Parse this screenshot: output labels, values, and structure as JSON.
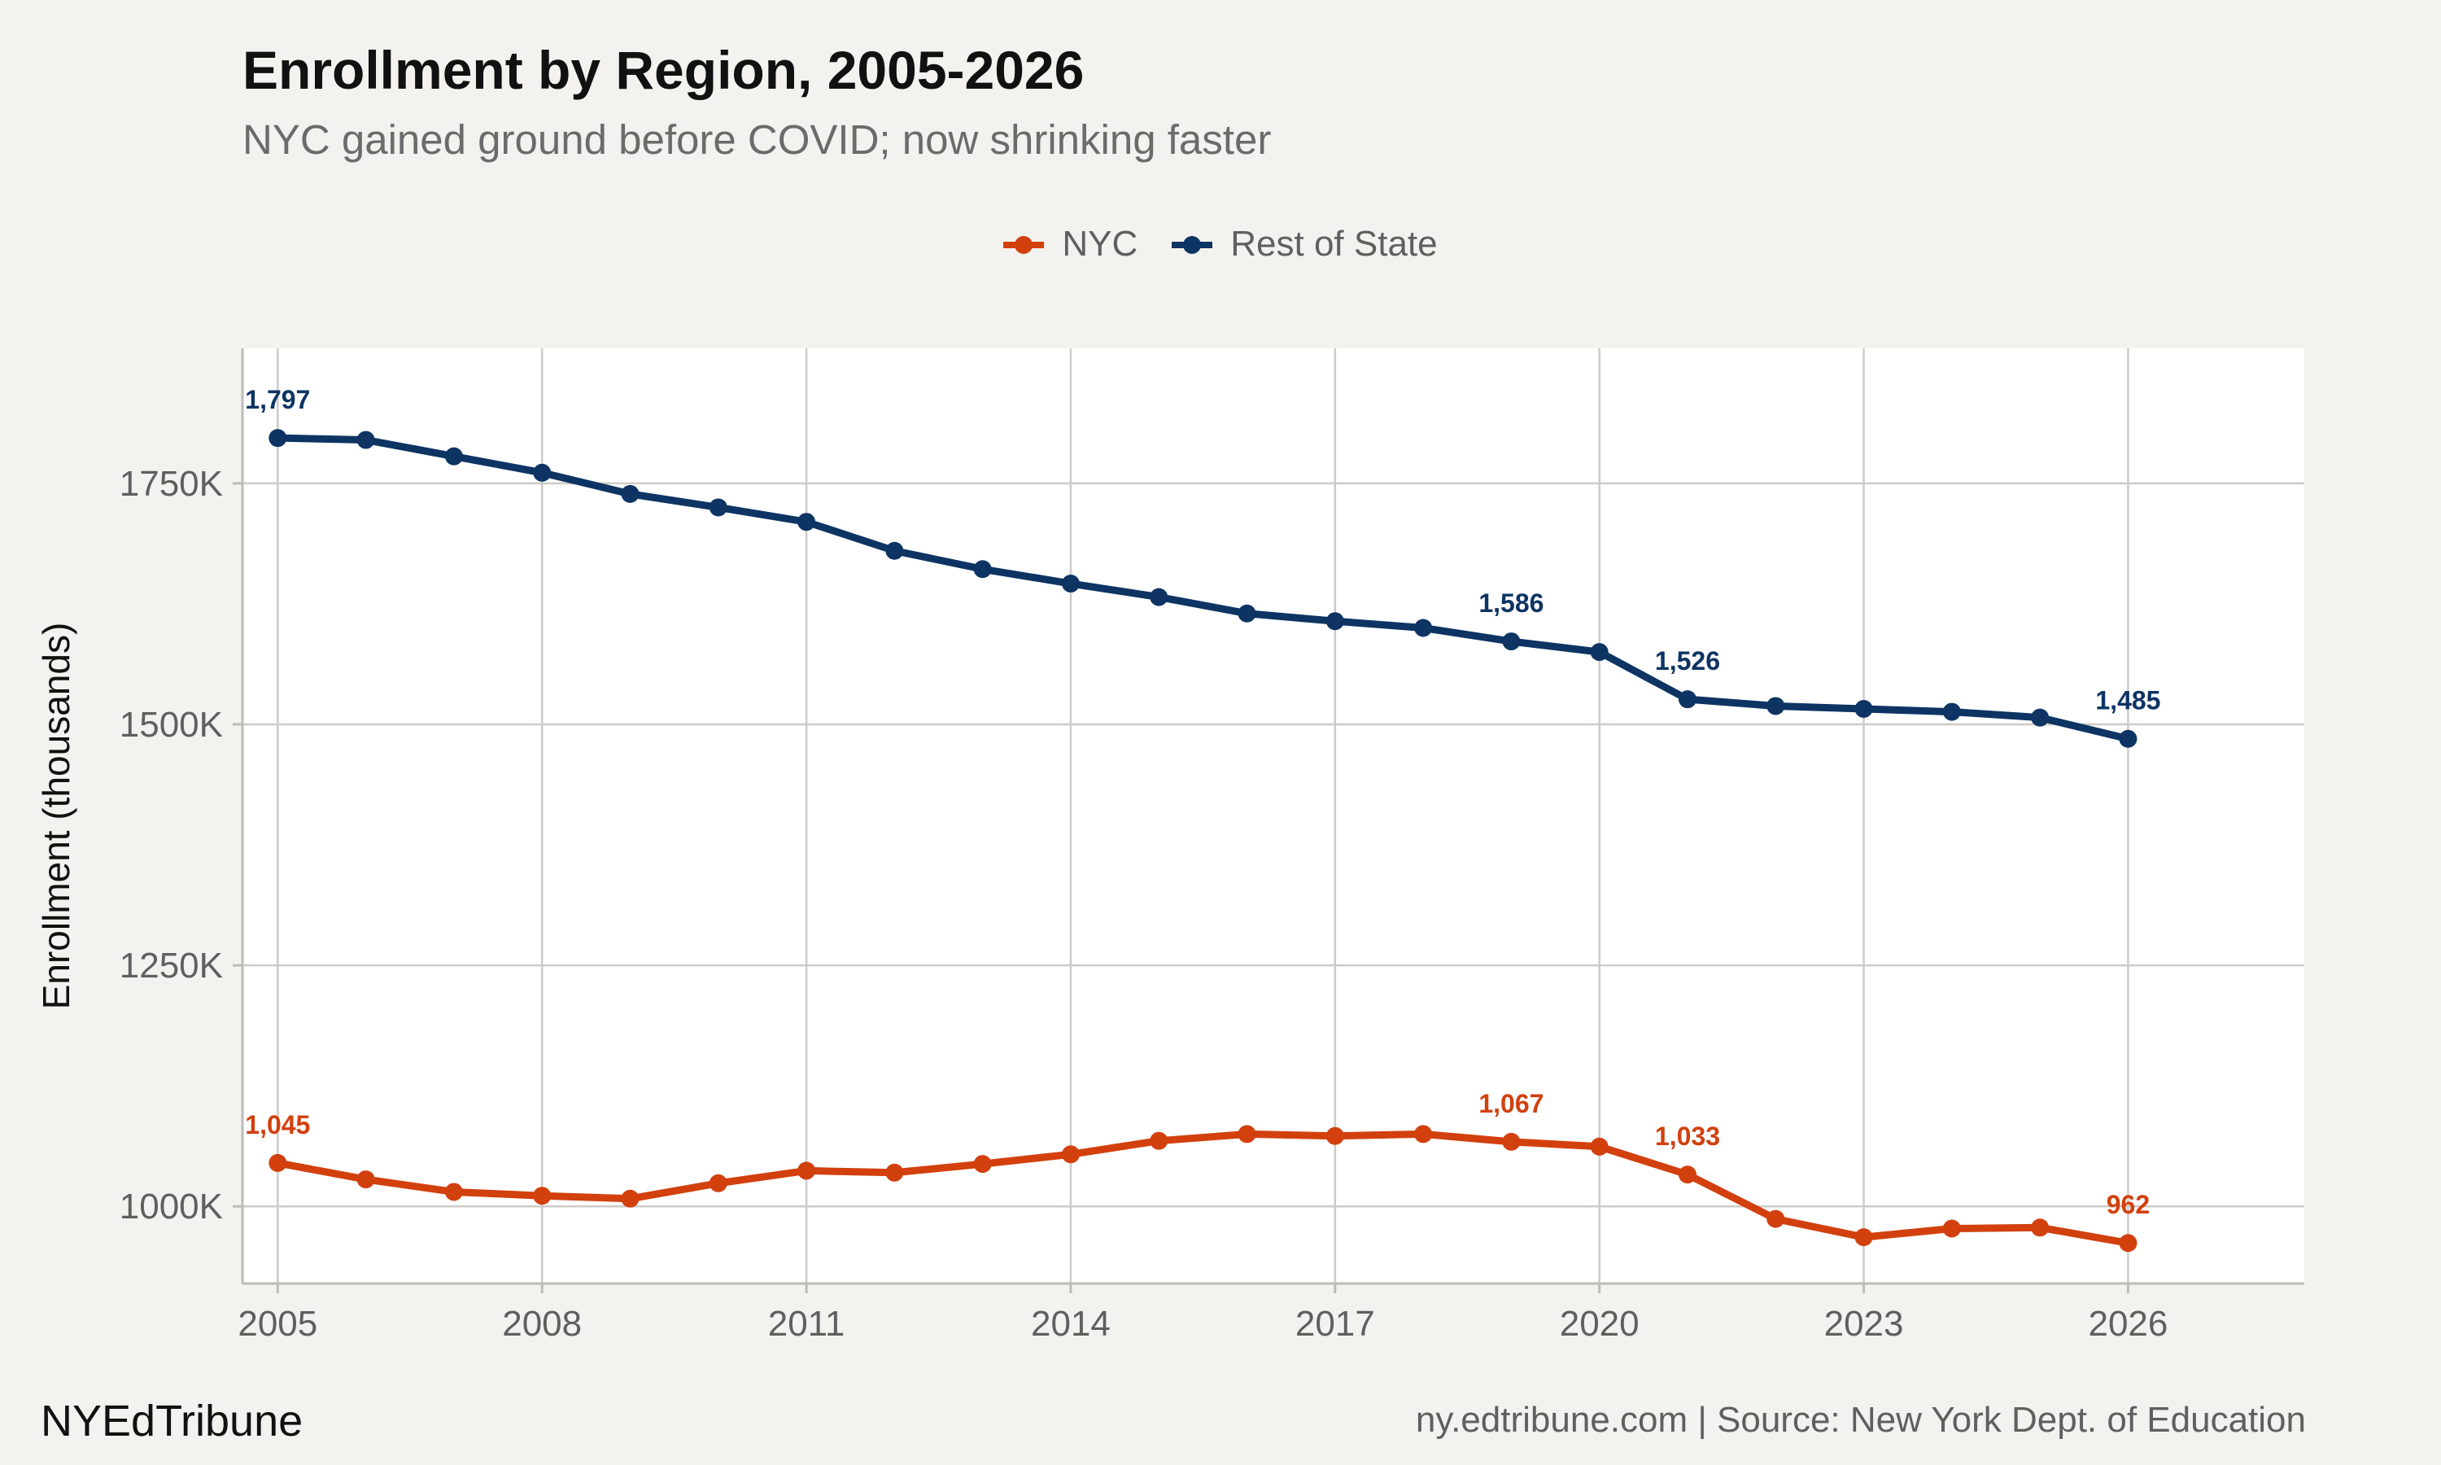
{
  "footer": {
    "brand": "NYEdTribune",
    "source": "ny.edtribune.com | Source: New York Dept. of Education"
  },
  "colors": {
    "background": "#f4f2ee",
    "panel": "#ffffff",
    "grid": "#cdcbc7",
    "nyc": "#d2400e",
    "rest_of_state": "#0d3463"
  },
  "chart_data": {
    "type": "line",
    "title": "Enrollment by Region, 2005-2026",
    "subtitle": "NYC gained ground before COVID; now shrinking faster",
    "xlabel": "",
    "ylabel": "Enrollment (thousands)",
    "x": [
      2005,
      2006,
      2007,
      2008,
      2009,
      2010,
      2011,
      2012,
      2013,
      2014,
      2015,
      2016,
      2017,
      2018,
      2019,
      2020,
      2021,
      2022,
      2023,
      2024,
      2025,
      2026
    ],
    "xticks": [
      2005,
      2008,
      2011,
      2014,
      2017,
      2020,
      2023,
      2026
    ],
    "xtick_labels": [
      "2005",
      "2008",
      "2011",
      "2014",
      "2017",
      "2020",
      "2023",
      "2026"
    ],
    "xlim": [
      2004.6,
      2028
    ],
    "yticks": [
      1000,
      1250,
      1500,
      1750
    ],
    "ytick_labels": [
      "1000K",
      "1250K",
      "1500K",
      "1750K"
    ],
    "ylim": [
      920,
      1890
    ],
    "grid": true,
    "legend_position": "top",
    "series": [
      {
        "name": "NYC",
        "color": "#d2400e",
        "values": [
          1045,
          1028,
          1015,
          1011,
          1008,
          1024,
          1037,
          1035,
          1044,
          1054,
          1068,
          1075,
          1073,
          1075,
          1067,
          1062,
          1033,
          987,
          968,
          977,
          978,
          962
        ],
        "labels": [
          {
            "x": 2005,
            "text": "1,045"
          },
          {
            "x": 2019,
            "text": "1,067"
          },
          {
            "x": 2021,
            "text": "1,033"
          },
          {
            "x": 2026,
            "text": "962"
          }
        ]
      },
      {
        "name": "Rest of State",
        "color": "#0d3463",
        "values": [
          1797,
          1795,
          1778,
          1761,
          1739,
          1725,
          1710,
          1680,
          1661,
          1646,
          1632,
          1615,
          1607,
          1600,
          1586,
          1575,
          1526,
          1519,
          1516,
          1513,
          1507,
          1485
        ],
        "labels": [
          {
            "x": 2005,
            "text": "1,797"
          },
          {
            "x": 2019,
            "text": "1,586"
          },
          {
            "x": 2021,
            "text": "1,526"
          },
          {
            "x": 2026,
            "text": "1,485"
          }
        ]
      }
    ]
  }
}
